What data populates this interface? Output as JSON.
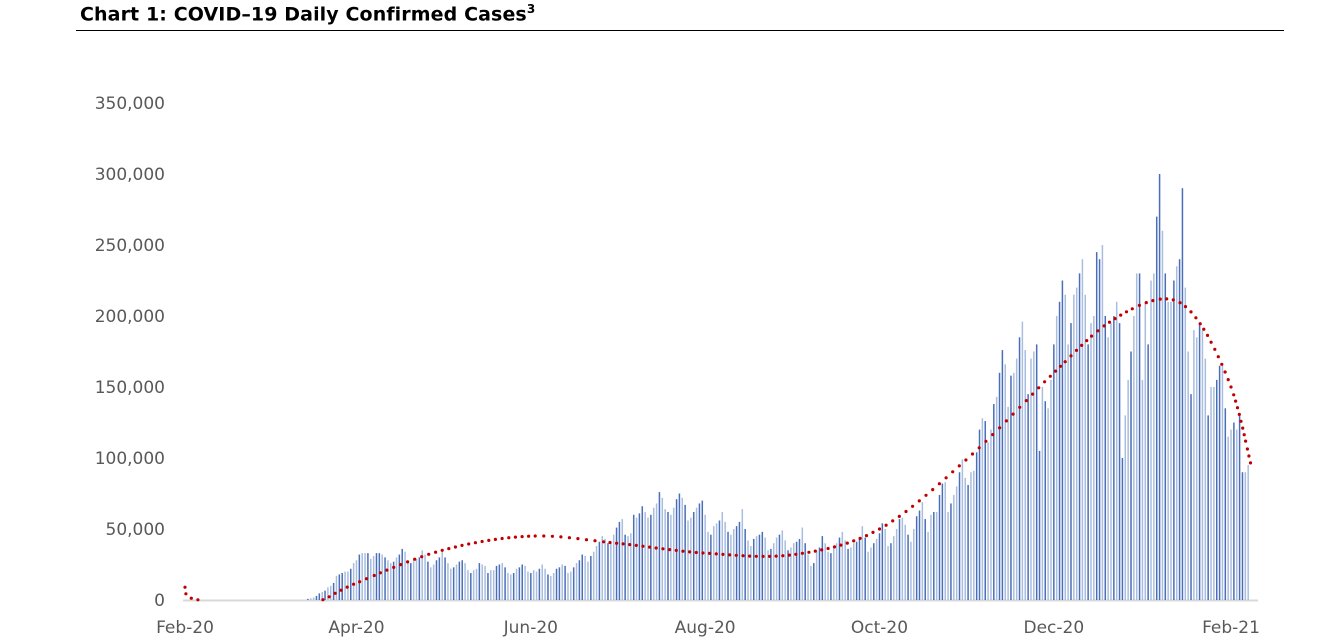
{
  "chart_data": {
    "type": "bar",
    "title": "Chart 1: COVID–19 Daily Confirmed Cases",
    "title_footnote": "3",
    "xlabel": "",
    "ylabel": "",
    "ylim": [
      0,
      350000
    ],
    "y_ticks": [
      "0",
      "50,000",
      "100,000",
      "150,000",
      "200,000",
      "250,000",
      "300,000",
      "350,000"
    ],
    "y_tick_values": [
      0,
      50000,
      100000,
      150000,
      200000,
      250000,
      300000,
      350000
    ],
    "x_ticks": [
      {
        "label": "Feb-20",
        "date": "2020-02-01"
      },
      {
        "label": "Apr-20",
        "date": "2020-04-01"
      },
      {
        "label": "Jun-20",
        "date": "2020-06-01"
      },
      {
        "label": "Aug-20",
        "date": "2020-08-01"
      },
      {
        "label": "Oct-20",
        "date": "2020-10-01"
      },
      {
        "label": "Dec-20",
        "date": "2020-12-01"
      },
      {
        "label": "Feb-21",
        "date": "2021-02-01"
      }
    ],
    "xlim": [
      "2020-02-01",
      "2021-02-09"
    ],
    "grid": false,
    "legend": "none",
    "colors": {
      "bar_dark": "#4a6fb8",
      "bar_light": "#a9bde0",
      "trendline": "#c00000",
      "axis": "#d9d9d9"
    },
    "series": [
      {
        "kind": "daily-bars",
        "start_date": "2020-03-15",
        "values": [
          800,
          1200,
          1800,
          2800,
          4700,
          5600,
          6600,
          9000,
          10000,
          12000,
          17000,
          18000,
          19000,
          20000,
          20000,
          22000,
          26000,
          28000,
          32000,
          33000,
          33000,
          33000,
          29000,
          31000,
          33000,
          33000,
          32000,
          30000,
          28000,
          26000,
          27000,
          30000,
          32000,
          36000,
          34000,
          28000,
          26000,
          28000,
          29000,
          30000,
          35000,
          32000,
          27000,
          23000,
          25000,
          28000,
          30000,
          34000,
          30000,
          26000,
          22000,
          23000,
          25000,
          27000,
          28000,
          26000,
          21000,
          19000,
          21000,
          22000,
          26000,
          25000,
          24000,
          19000,
          21000,
          21000,
          24000,
          25000,
          26000,
          23000,
          19000,
          18000,
          19000,
          22000,
          23000,
          25000,
          24000,
          20000,
          19000,
          21000,
          20000,
          22000,
          25000,
          22000,
          18000,
          17000,
          19000,
          22000,
          23000,
          25000,
          24000,
          19000,
          20000,
          23000,
          26000,
          28000,
          32000,
          31000,
          27000,
          31000,
          34000,
          38000,
          41000,
          45000,
          43000,
          40000,
          41000,
          46000,
          51000,
          55000,
          57000,
          46000,
          45000,
          47000,
          60000,
          58000,
          61000,
          66000,
          62000,
          58000,
          60000,
          65000,
          68000,
          76000,
          72000,
          64000,
          62000,
          60000,
          65000,
          71000,
          75000,
          72000,
          67000,
          56000,
          58000,
          62000,
          65000,
          68000,
          70000,
          60000,
          48000,
          46000,
          52000,
          54000,
          56000,
          62000,
          55000,
          48000,
          46000,
          50000,
          52000,
          55000,
          64000,
          50000,
          42000,
          38000,
          43000,
          45000,
          46000,
          48000,
          44000,
          35000,
          36000,
          40000,
          44000,
          46000,
          49000,
          42000,
          35000,
          37000,
          40000,
          41000,
          43000,
          51000,
          40000,
          32000,
          24000,
          26000,
          35000,
          37000,
          45000,
          40000,
          34000,
          33000,
          38000,
          40000,
          44000,
          48000,
          42000,
          36000,
          37000,
          40000,
          41000,
          44000,
          52000,
          44000,
          34000,
          37000,
          40000,
          43000,
          47000,
          54000,
          50000,
          38000,
          40000,
          45000,
          50000,
          57000,
          58000,
          53000,
          46000,
          41000,
          50000,
          59000,
          63000,
          69000,
          57000,
          48000,
          60000,
          62000,
          62000,
          74000,
          82000,
          83000,
          62000,
          68000,
          74000,
          80000,
          90000,
          99000,
          86000,
          81000,
          90000,
          91000,
          104000,
          120000,
          128000,
          126000,
          111000,
          120000,
          138000,
          143000,
          160000,
          176000,
          166000,
          136000,
          158000,
          160000,
          170000,
          185000,
          196000,
          176000,
          145000,
          170000,
          175000,
          180000,
          105000,
          150000,
          140000,
          135000,
          155000,
          180000,
          200000,
          210000,
          225000,
          215000,
          180000,
          195000,
          215000,
          220000,
          230000,
          240000,
          215000,
          180000,
          195000,
          200000,
          245000,
          240000,
          250000,
          200000,
          185000,
          195000,
          200000,
          210000,
          195000,
          100000,
          130000,
          155000,
          175000,
          200000,
          230000,
          230000,
          155000,
          210000,
          180000,
          225000,
          230000,
          270000,
          300000,
          260000,
          230000,
          210000,
          210000,
          225000,
          235000,
          240000,
          290000,
          220000,
          175000,
          145000,
          190000,
          185000,
          195000,
          190000,
          170000,
          130000,
          150000,
          150000,
          155000,
          165000,
          165000,
          135000,
          115000,
          120000,
          125000,
          120000,
          130000,
          90000,
          90000,
          95000
        ]
      }
    ],
    "trendline": {
      "kind": "polynomial (dotted)",
      "points": [
        [
          "2020-02-01",
          9000
        ],
        [
          "2020-02-06",
          0
        ],
        [
          "2020-03-13",
          -2000
        ],
        [
          "2020-03-20",
          0
        ],
        [
          "2020-04-01",
          12000
        ],
        [
          "2020-05-01",
          35000
        ],
        [
          "2020-06-01",
          45000
        ],
        [
          "2020-07-01",
          40000
        ],
        [
          "2020-08-01",
          33000
        ],
        [
          "2020-09-01",
          32000
        ],
        [
          "2020-10-01",
          50000
        ],
        [
          "2020-11-01",
          100000
        ],
        [
          "2020-12-01",
          160000
        ],
        [
          "2020-12-20",
          195000
        ],
        [
          "2021-01-08",
          212000
        ],
        [
          "2021-01-20",
          198000
        ],
        [
          "2021-02-01",
          150000
        ],
        [
          "2021-02-08",
          95000
        ]
      ]
    }
  }
}
